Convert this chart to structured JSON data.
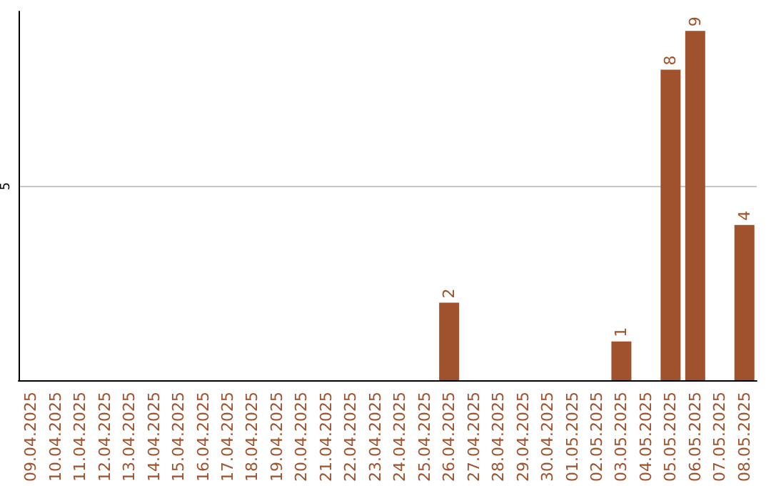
{
  "chart_data": {
    "type": "bar",
    "categories": [
      "09.04.2025",
      "10.04.2025",
      "11.04.2025",
      "12.04.2025",
      "13.04.2025",
      "14.04.2025",
      "15.04.2025",
      "16.04.2025",
      "17.04.2025",
      "18.04.2025",
      "19.04.2025",
      "20.04.2025",
      "21.04.2025",
      "22.04.2025",
      "23.04.2025",
      "24.04.2025",
      "25.04.2025",
      "26.04.2025",
      "27.04.2025",
      "28.04.2025",
      "29.04.2025",
      "30.04.2025",
      "01.05.2025",
      "02.05.2025",
      "03.05.2025",
      "04.05.2025",
      "05.05.2025",
      "06.05.2025",
      "07.05.2025",
      "08.05.2025"
    ],
    "values": [
      null,
      null,
      null,
      null,
      null,
      null,
      null,
      null,
      null,
      null,
      null,
      null,
      null,
      null,
      null,
      null,
      null,
      2,
      null,
      null,
      null,
      null,
      null,
      null,
      1,
      null,
      8,
      9,
      null,
      4
    ],
    "color": "#a0522d",
    "ylim": [
      0,
      9.5
    ],
    "yticks": [
      5
    ],
    "grid": "y",
    "data_labels": true
  }
}
